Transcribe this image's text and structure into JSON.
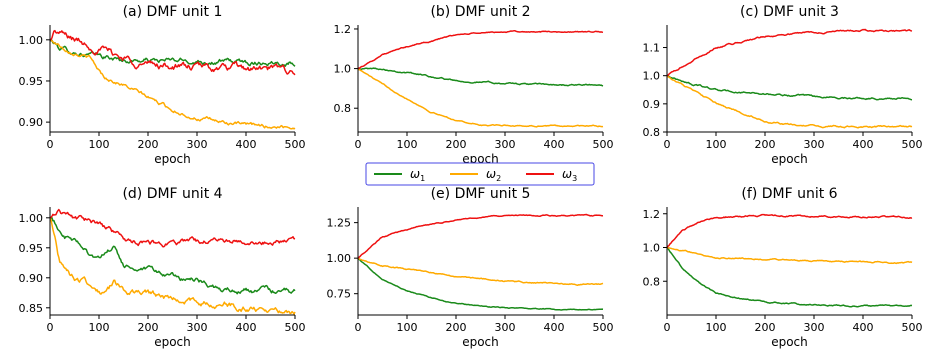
{
  "figure": {
    "legend": {
      "placement": "center, between rows",
      "border_color": "#4747e6"
    }
  },
  "colors": {
    "omega1": "#1a8a1a",
    "omega2": "#ffaa00",
    "omega3": "#ee1111"
  },
  "chart_data": [
    {
      "type": "line",
      "title": "(a) DMF unit 1",
      "xlabel": "epoch",
      "xlim": [
        0,
        500
      ],
      "ylim": [
        0.888,
        1.018
      ],
      "xticks": [
        0,
        100,
        200,
        300,
        400,
        500
      ],
      "yticks": [
        0.9,
        0.95,
        1.0
      ],
      "ytick_labels": [
        "0.90",
        "0.95",
        "1.00"
      ],
      "series": [
        {
          "name": "ω₁",
          "key": "omega1",
          "points": [
            [
              0,
              1.0
            ],
            [
              20,
              0.99
            ],
            [
              50,
              0.985
            ],
            [
              100,
              0.98
            ],
            [
              150,
              0.975
            ],
            [
              200,
              0.975
            ],
            [
              300,
              0.974
            ],
            [
              400,
              0.973
            ],
            [
              500,
              0.973
            ]
          ],
          "noise": 0.004
        },
        {
          "name": "ω₂",
          "key": "omega2",
          "points": [
            [
              0,
              1.0
            ],
            [
              30,
              0.99
            ],
            [
              80,
              0.978
            ],
            [
              110,
              0.955
            ],
            [
              150,
              0.945
            ],
            [
              200,
              0.93
            ],
            [
              250,
              0.915
            ],
            [
              300,
              0.905
            ],
            [
              350,
              0.9
            ],
            [
              400,
              0.896
            ],
            [
              500,
              0.894
            ]
          ],
          "noise": 0.003
        },
        {
          "name": "ω₃",
          "key": "omega3",
          "points": [
            [
              0,
              1.0
            ],
            [
              10,
              1.01
            ],
            [
              50,
              1.0
            ],
            [
              100,
              0.99
            ],
            [
              150,
              0.978
            ],
            [
              200,
              0.97
            ],
            [
              300,
              0.966
            ],
            [
              400,
              0.964
            ],
            [
              500,
              0.962
            ]
          ],
          "noise": 0.006
        }
      ]
    },
    {
      "type": "line",
      "title": "(b) DMF unit 2",
      "xlabel": "epoch",
      "xlim": [
        0,
        500
      ],
      "ylim": [
        0.68,
        1.22
      ],
      "xticks": [
        0,
        100,
        200,
        300,
        400,
        500
      ],
      "yticks": [
        0.8,
        1.0,
        1.2
      ],
      "ytick_labels": [
        "0.8",
        "1.0",
        "1.2"
      ],
      "series": [
        {
          "name": "ω₁",
          "key": "omega1",
          "points": [
            [
              0,
              1.0
            ],
            [
              50,
              1.0
            ],
            [
              100,
              0.98
            ],
            [
              150,
              0.96
            ],
            [
              200,
              0.94
            ],
            [
              300,
              0.925
            ],
            [
              400,
              0.918
            ],
            [
              500,
              0.915
            ]
          ],
          "noise": 0.005
        },
        {
          "name": "ω₂",
          "key": "omega2",
          "points": [
            [
              0,
              1.0
            ],
            [
              50,
              0.92
            ],
            [
              100,
              0.85
            ],
            [
              150,
              0.78
            ],
            [
              200,
              0.74
            ],
            [
              250,
              0.715
            ],
            [
              300,
              0.712
            ],
            [
              500,
              0.71
            ]
          ],
          "noise": 0.004
        },
        {
          "name": "ω₃",
          "key": "omega3",
          "points": [
            [
              0,
              1.0
            ],
            [
              50,
              1.07
            ],
            [
              100,
              1.11
            ],
            [
              150,
              1.14
            ],
            [
              200,
              1.17
            ],
            [
              250,
              1.18
            ],
            [
              300,
              1.185
            ],
            [
              500,
              1.185
            ]
          ],
          "noise": 0.004
        }
      ]
    },
    {
      "type": "line",
      "title": "(c) DMF unit 3",
      "xlabel": "epoch",
      "xlim": [
        0,
        500
      ],
      "ylim": [
        0.8,
        1.18
      ],
      "xticks": [
        0,
        100,
        200,
        300,
        400,
        500
      ],
      "yticks": [
        0.8,
        0.9,
        1.0,
        1.1
      ],
      "ytick_labels": [
        "0.8",
        "0.9",
        "1.0",
        "1.1"
      ],
      "series": [
        {
          "name": "ω₁",
          "key": "omega1",
          "points": [
            [
              0,
              1.0
            ],
            [
              50,
              0.97
            ],
            [
              100,
              0.95
            ],
            [
              150,
              0.94
            ],
            [
              200,
              0.935
            ],
            [
              300,
              0.925
            ],
            [
              400,
              0.92
            ],
            [
              500,
              0.92
            ]
          ],
          "noise": 0.004
        },
        {
          "name": "ω₂",
          "key": "omega2",
          "points": [
            [
              0,
              1.0
            ],
            [
              50,
              0.95
            ],
            [
              100,
              0.9
            ],
            [
              150,
              0.87
            ],
            [
              200,
              0.84
            ],
            [
              250,
              0.825
            ],
            [
              300,
              0.82
            ],
            [
              500,
              0.818
            ]
          ],
          "noise": 0.004
        },
        {
          "name": "ω₃",
          "key": "omega3",
          "points": [
            [
              0,
              1.0
            ],
            [
              50,
              1.05
            ],
            [
              100,
              1.1
            ],
            [
              150,
              1.12
            ],
            [
              200,
              1.14
            ],
            [
              300,
              1.155
            ],
            [
              400,
              1.16
            ],
            [
              500,
              1.158
            ]
          ],
          "noise": 0.004
        }
      ]
    },
    {
      "type": "line",
      "title": "(d) DMF unit 4",
      "xlabel": "epoch",
      "xlim": [
        0,
        500
      ],
      "ylim": [
        0.838,
        1.018
      ],
      "xticks": [
        0,
        100,
        200,
        300,
        400,
        500
      ],
      "yticks": [
        0.85,
        0.9,
        0.95,
        1.0
      ],
      "ytick_labels": [
        "0.85",
        "0.90",
        "0.95",
        "1.00"
      ],
      "series": [
        {
          "name": "ω₁",
          "key": "omega1",
          "points": [
            [
              0,
              1.0
            ],
            [
              30,
              0.97
            ],
            [
              70,
              0.95
            ],
            [
              100,
              0.93
            ],
            [
              130,
              0.95
            ],
            [
              150,
              0.92
            ],
            [
              200,
              0.91
            ],
            [
              300,
              0.895
            ],
            [
              350,
              0.88
            ],
            [
              400,
              0.878
            ],
            [
              500,
              0.876
            ]
          ],
          "noise": 0.006
        },
        {
          "name": "ω₂",
          "key": "omega2",
          "points": [
            [
              0,
              1.0
            ],
            [
              20,
              0.93
            ],
            [
              50,
              0.9
            ],
            [
              90,
              0.885
            ],
            [
              110,
              0.875
            ],
            [
              130,
              0.89
            ],
            [
              150,
              0.878
            ],
            [
              200,
              0.87
            ],
            [
              300,
              0.86
            ],
            [
              400,
              0.85
            ],
            [
              500,
              0.846
            ]
          ],
          "noise": 0.007
        },
        {
          "name": "ω₃",
          "key": "omega3",
          "points": [
            [
              0,
              1.0
            ],
            [
              20,
              1.01
            ],
            [
              50,
              1.0
            ],
            [
              100,
              0.99
            ],
            [
              150,
              0.965
            ],
            [
              200,
              0.955
            ],
            [
              250,
              0.958
            ],
            [
              300,
              0.96
            ],
            [
              400,
              0.963
            ],
            [
              500,
              0.963
            ]
          ],
          "noise": 0.006
        }
      ]
    },
    {
      "type": "line",
      "title": "(e) DMF unit 5",
      "xlabel": "epoch",
      "xlim": [
        0,
        500
      ],
      "ylim": [
        0.6,
        1.36
      ],
      "xticks": [
        0,
        100,
        200,
        300,
        400,
        500
      ],
      "yticks": [
        0.75,
        1.0,
        1.25
      ],
      "ytick_labels": [
        "0.75",
        "1.00",
        "1.25"
      ],
      "series": [
        {
          "name": "ω₁",
          "key": "omega1",
          "points": [
            [
              0,
              1.0
            ],
            [
              50,
              0.85
            ],
            [
              100,
              0.77
            ],
            [
              150,
              0.72
            ],
            [
              200,
              0.68
            ],
            [
              300,
              0.65
            ],
            [
              400,
              0.64
            ],
            [
              500,
              0.64
            ]
          ],
          "noise": 0.004
        },
        {
          "name": "ω₂",
          "key": "omega2",
          "points": [
            [
              0,
              1.0
            ],
            [
              50,
              0.95
            ],
            [
              100,
              0.92
            ],
            [
              150,
              0.9
            ],
            [
              200,
              0.87
            ],
            [
              300,
              0.84
            ],
            [
              400,
              0.82
            ],
            [
              500,
              0.815
            ]
          ],
          "noise": 0.006
        },
        {
          "name": "ω₃",
          "key": "omega3",
          "points": [
            [
              0,
              1.0
            ],
            [
              50,
              1.15
            ],
            [
              100,
              1.2
            ],
            [
              150,
              1.24
            ],
            [
              200,
              1.27
            ],
            [
              300,
              1.3
            ],
            [
              400,
              1.3
            ],
            [
              500,
              1.3
            ]
          ],
          "noise": 0.005
        }
      ]
    },
    {
      "type": "line",
      "title": "(f) DMF unit 6",
      "xlabel": "epoch",
      "xlim": [
        0,
        500
      ],
      "ylim": [
        0.6,
        1.24
      ],
      "xticks": [
        0,
        100,
        200,
        300,
        400,
        500
      ],
      "yticks": [
        0.8,
        1.0,
        1.2
      ],
      "ytick_labels": [
        "0.8",
        "1.0",
        "1.2"
      ],
      "series": [
        {
          "name": "ω₁",
          "key": "omega1",
          "points": [
            [
              0,
              1.0
            ],
            [
              30,
              0.88
            ],
            [
              70,
              0.78
            ],
            [
              100,
              0.73
            ],
            [
              150,
              0.7
            ],
            [
              200,
              0.675
            ],
            [
              300,
              0.66
            ],
            [
              400,
              0.655
            ],
            [
              500,
              0.655
            ]
          ],
          "noise": 0.005
        },
        {
          "name": "ω₂",
          "key": "omega2",
          "points": [
            [
              0,
              1.0
            ],
            [
              50,
              0.97
            ],
            [
              100,
              0.94
            ],
            [
              150,
              0.935
            ],
            [
              200,
              0.93
            ],
            [
              300,
              0.92
            ],
            [
              400,
              0.915
            ],
            [
              500,
              0.91
            ]
          ],
          "noise": 0.005
        },
        {
          "name": "ω₃",
          "key": "omega3",
          "points": [
            [
              0,
              1.0
            ],
            [
              30,
              1.1
            ],
            [
              70,
              1.16
            ],
            [
              100,
              1.18
            ],
            [
              200,
              1.19
            ],
            [
              300,
              1.185
            ],
            [
              400,
              1.18
            ],
            [
              500,
              1.18
            ]
          ],
          "noise": 0.006
        }
      ]
    }
  ],
  "legend": {
    "entries": [
      {
        "key": "omega1",
        "label": "ω",
        "sub": "1"
      },
      {
        "key": "omega2",
        "label": "ω",
        "sub": "2"
      },
      {
        "key": "omega3",
        "label": "ω",
        "sub": "3"
      }
    ]
  }
}
